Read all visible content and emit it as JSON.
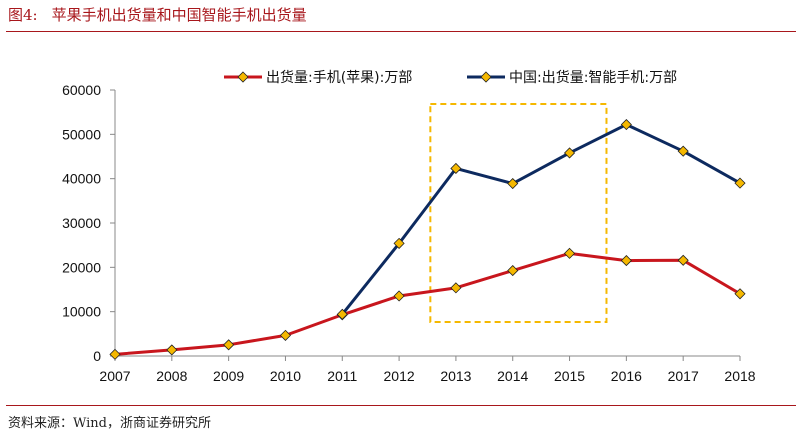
{
  "figure": {
    "label": "图4:",
    "title": "苹果手机出货量和中国智能手机出货量",
    "source": "资料来源：Wind，浙商证券研究所"
  },
  "chart_data": {
    "type": "line",
    "x": [
      "2007",
      "2008",
      "2009",
      "2010",
      "2011",
      "2012",
      "2013",
      "2014",
      "2015",
      "2016",
      "2017",
      "2018"
    ],
    "series": [
      {
        "name": "出货量:手机(苹果):万部",
        "color": "#c8161d",
        "values": [
          370,
          1370,
          2520,
          4650,
          9300,
          13540,
          15370,
          19270,
          23150,
          21520,
          21590,
          14040
        ]
      },
      {
        "name": "中国:出货量:智能手机:万部",
        "color": "#0d2a5f",
        "values": [
          null,
          null,
          null,
          null,
          9400,
          25400,
          42300,
          38900,
          45800,
          52200,
          46200,
          39000
        ]
      }
    ],
    "marker_color": "#f5b800",
    "ylim": [
      0,
      60000
    ],
    "yticks": [
      "0",
      "10000",
      "20000",
      "30000",
      "40000",
      "50000",
      "60000"
    ],
    "xlabel": "",
    "ylabel": "",
    "legend_position": "top",
    "grid": false,
    "highlight": {
      "x_range": [
        "2013",
        "2015"
      ],
      "color": "#f5b800",
      "style": "dashed"
    }
  }
}
